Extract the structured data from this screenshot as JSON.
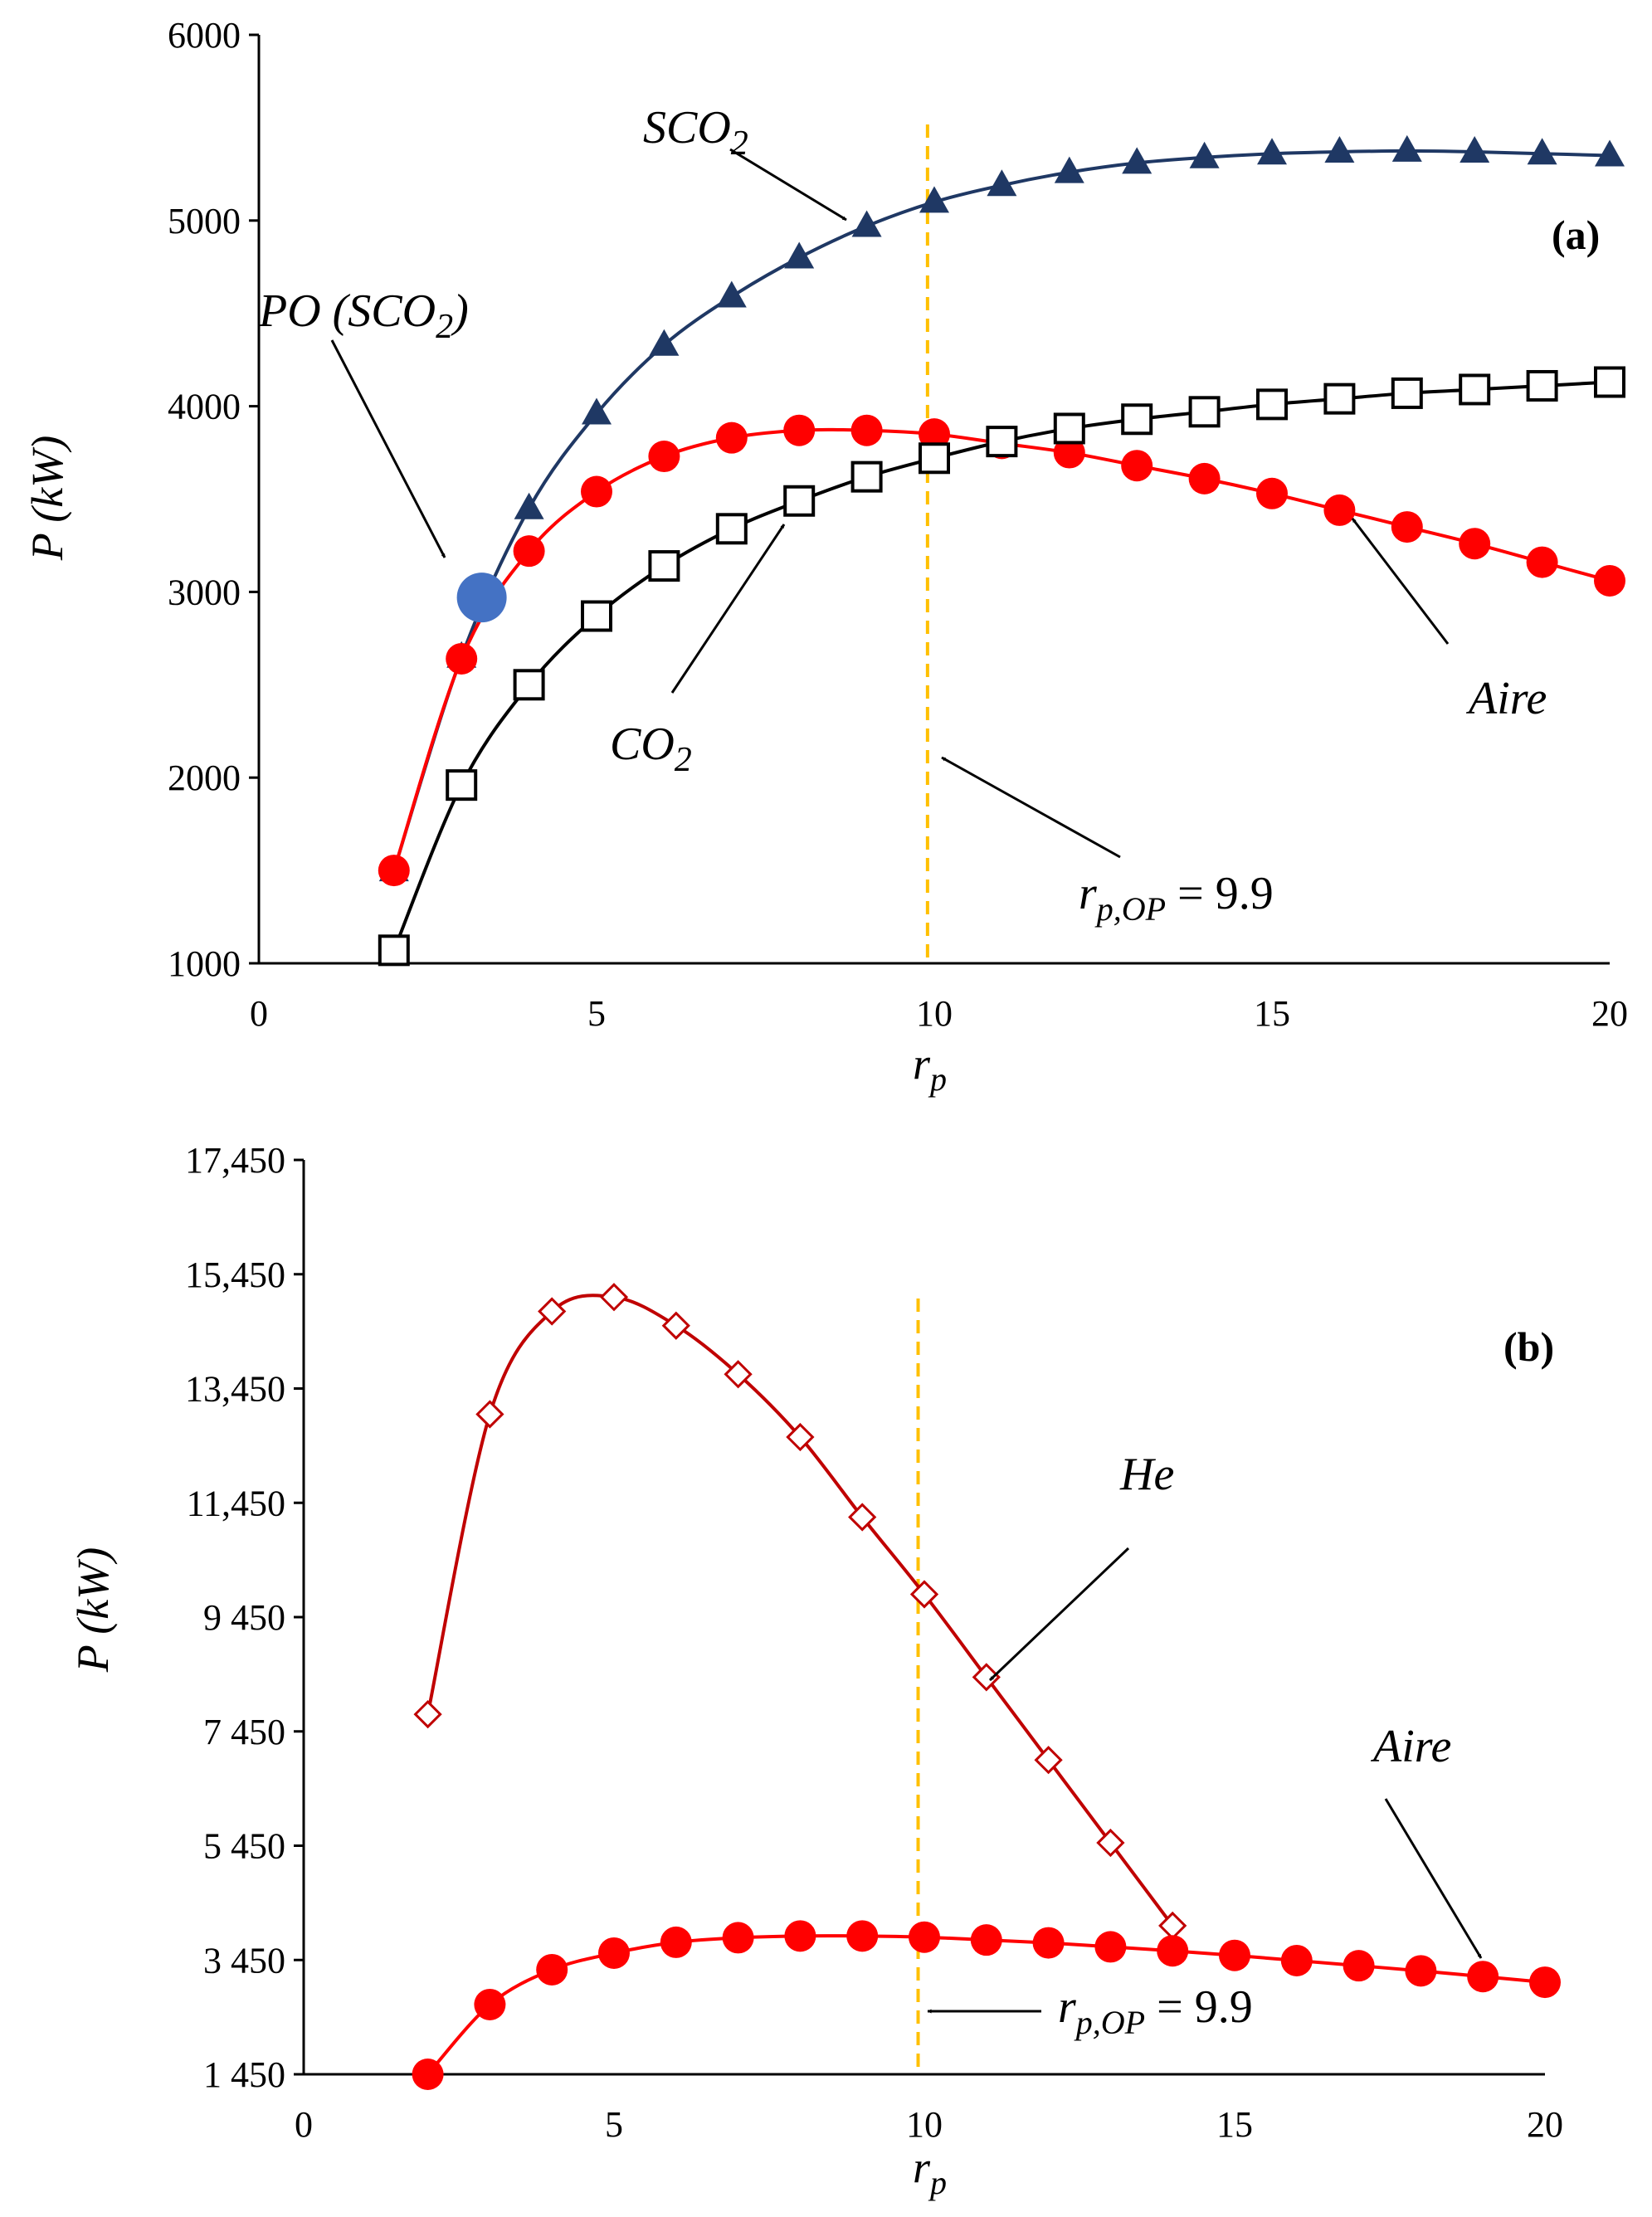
{
  "chart_data": [
    {
      "type": "line",
      "panel_label": "(a)",
      "xlabel_main": "r",
      "xlabel_sub": "p",
      "ylabel": "P (kW)",
      "xlim": [
        0,
        20
      ],
      "ylim": [
        1000,
        6000
      ],
      "xticks": [
        "0",
        "5",
        "10",
        "15",
        "20"
      ],
      "yticks": [
        "1000",
        "2000",
        "3000",
        "4000",
        "5000",
        "6000"
      ],
      "xtick_values": [
        0,
        5,
        10,
        15,
        20
      ],
      "ytick_values": [
        1000,
        2000,
        3000,
        4000,
        5000,
        6000
      ],
      "series": [
        {
          "name": "SCO2",
          "marker": "triangle",
          "color": "#1f3864",
          "x": [
            2,
            3,
            4,
            5,
            6,
            7,
            8,
            9,
            10,
            11,
            12,
            13,
            14,
            15,
            16,
            17,
            18,
            19,
            20
          ],
          "values": [
            1500,
            2650,
            3450,
            3960,
            4330,
            4590,
            4800,
            4970,
            5100,
            5190,
            5260,
            5310,
            5340,
            5360,
            5370,
            5375,
            5370,
            5360,
            5350
          ]
        },
        {
          "name": "Aire",
          "marker": "filled-circle",
          "color": "#ff0000",
          "x": [
            2,
            3,
            4,
            5,
            6,
            7,
            8,
            9,
            10,
            11,
            12,
            13,
            14,
            15,
            16,
            17,
            18,
            19,
            20
          ],
          "values": [
            1500,
            2640,
            3220,
            3540,
            3730,
            3830,
            3870,
            3870,
            3850,
            3800,
            3750,
            3680,
            3610,
            3530,
            3440,
            3350,
            3260,
            3160,
            3060
          ]
        },
        {
          "name": "CO2",
          "marker": "open-square",
          "color": "#000000",
          "x": [
            2,
            3,
            4,
            5,
            6,
            7,
            8,
            9,
            10,
            11,
            12,
            13,
            14,
            15,
            16,
            17,
            18,
            19,
            20
          ],
          "values": [
            1070,
            1960,
            2500,
            2870,
            3140,
            3340,
            3490,
            3620,
            3720,
            3810,
            3880,
            3930,
            3970,
            4010,
            4040,
            4070,
            4090,
            4110,
            4130
          ]
        }
      ],
      "highlight_point": {
        "name": "PO (SCO2)",
        "x": 3.3,
        "y": 2970,
        "color": "#4472c4"
      },
      "vline": {
        "x": 9.9,
        "color": "#ffc000"
      },
      "annotations": {
        "sco2_main": "SCO",
        "sco2_sub": "2",
        "po_prefix": "PO (SCO",
        "po_sub": "2",
        "po_suffix": ")",
        "co2_main": "CO",
        "co2_sub": "2",
        "aire": "Aire",
        "rp_main": "r",
        "rp_sub": "p,OP",
        "rp_value": " = 9.9"
      }
    },
    {
      "type": "line",
      "panel_label": "(b)",
      "xlabel_main": "r",
      "xlabel_sub": "p",
      "ylabel": "P (kW)",
      "xlim": [
        0,
        20
      ],
      "ylim": [
        1450,
        17450
      ],
      "xticks": [
        "0",
        "5",
        "10",
        "15",
        "20"
      ],
      "yticks": [
        "1 450",
        "3 450",
        "5 450",
        "7 450",
        "9 450",
        "11,450",
        "13,450",
        "15,450",
        "17,450"
      ],
      "xtick_values": [
        0,
        5,
        10,
        15,
        20
      ],
      "ytick_values": [
        1450,
        3450,
        5450,
        7450,
        9450,
        11450,
        13450,
        15450,
        17450
      ],
      "series": [
        {
          "name": "He",
          "marker": "open-diamond",
          "color": "#c00000",
          "x": [
            2,
            3,
            4,
            5,
            6,
            7,
            8,
            9,
            10,
            11,
            12,
            13,
            14
          ],
          "values": [
            7750,
            13000,
            14800,
            15050,
            14550,
            13700,
            12600,
            11200,
            9850,
            8400,
            6950,
            5500,
            4050
          ]
        },
        {
          "name": "Aire",
          "marker": "filled-circle",
          "color": "#ff0000",
          "x": [
            2,
            3,
            4,
            5,
            6,
            7,
            8,
            9,
            10,
            11,
            12,
            13,
            14,
            15,
            16,
            17,
            18,
            19,
            20
          ],
          "values": [
            1450,
            2670,
            3280,
            3570,
            3760,
            3840,
            3870,
            3870,
            3850,
            3800,
            3750,
            3680,
            3610,
            3530,
            3440,
            3350,
            3260,
            3160,
            3060
          ]
        }
      ],
      "vline": {
        "x": 9.9,
        "color": "#ffc000"
      },
      "annotations": {
        "he": "He",
        "aire": "Aire",
        "rp_main": "r",
        "rp_sub": "p,OP",
        "rp_value": " = 9.9"
      }
    }
  ]
}
